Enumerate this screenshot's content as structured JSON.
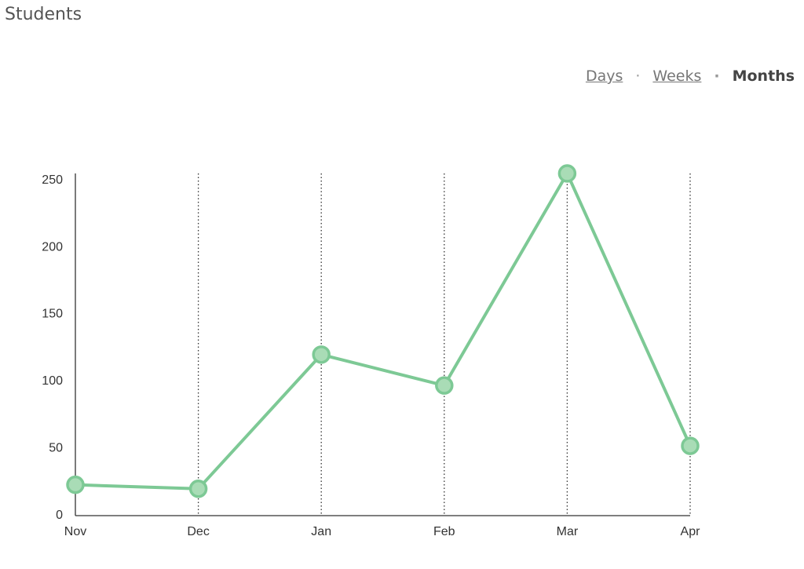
{
  "header": {
    "title": "Students"
  },
  "tabs": [
    {
      "label": "Days",
      "active": false
    },
    {
      "label": "Weeks",
      "active": false
    },
    {
      "label": "Months",
      "active": true
    }
  ],
  "chart_data": {
    "type": "line",
    "categories": [
      "Nov",
      "Dec",
      "Jan",
      "Feb",
      "Mar",
      "Apr"
    ],
    "series": [
      {
        "name": "Students",
        "color": "#7dc995",
        "values": [
          23,
          20,
          120,
          97,
          255,
          52
        ]
      }
    ],
    "ylim": [
      0,
      255
    ],
    "yticks": [
      0,
      50,
      100,
      150,
      200,
      250
    ],
    "grid": true
  }
}
